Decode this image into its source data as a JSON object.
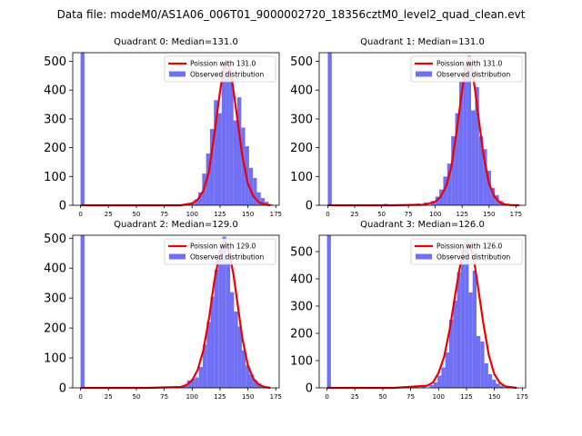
{
  "suptitle": "Data file: modeM0/AS1A06_006T01_9000002720_18356cztM0_level2_quad_clean.evt",
  "colors": {
    "hist": "#7070f5",
    "fit": "#ee0000",
    "axis": "#000000"
  },
  "chart_data": [
    {
      "type": "bar",
      "title": "Quadrant 0: Median=131.0",
      "median": 131.0,
      "xlim": [
        -7,
        178
      ],
      "ylim": [
        0,
        530
      ],
      "xticks": [
        "0",
        "25",
        "50",
        "75",
        "100",
        "125",
        "150",
        "175"
      ],
      "yticks": [
        "0",
        "100",
        "200",
        "300",
        "400",
        "500"
      ],
      "legend": {
        "loc": "top-right",
        "fit": "Poission with 131.0",
        "hist": "Observed distribution"
      },
      "bins": [
        {
          "x": 0,
          "w": 3.5,
          "y": 530
        },
        {
          "x": 95,
          "w": 3.5,
          "y": 3
        },
        {
          "x": 98.5,
          "w": 3.5,
          "y": 8
        },
        {
          "x": 102,
          "w": 3.5,
          "y": 20
        },
        {
          "x": 105.5,
          "w": 3.5,
          "y": 45
        },
        {
          "x": 109,
          "w": 3.5,
          "y": 110
        },
        {
          "x": 112.5,
          "w": 3.5,
          "y": 180
        },
        {
          "x": 116,
          "w": 3.5,
          "y": 265
        },
        {
          "x": 119.5,
          "w": 3.5,
          "y": 365
        },
        {
          "x": 123,
          "w": 3.5,
          "y": 320
        },
        {
          "x": 126.5,
          "w": 3.5,
          "y": 470
        },
        {
          "x": 130,
          "w": 3.5,
          "y": 480
        },
        {
          "x": 133.5,
          "w": 3.5,
          "y": 440
        },
        {
          "x": 137,
          "w": 3.5,
          "y": 295
        },
        {
          "x": 140.5,
          "w": 3.5,
          "y": 375
        },
        {
          "x": 144,
          "w": 3.5,
          "y": 270
        },
        {
          "x": 147.5,
          "w": 3.5,
          "y": 205
        },
        {
          "x": 151,
          "w": 3.5,
          "y": 130
        },
        {
          "x": 154.5,
          "w": 3.5,
          "y": 95
        },
        {
          "x": 158,
          "w": 3.5,
          "y": 45
        },
        {
          "x": 161.5,
          "w": 3.5,
          "y": 25
        },
        {
          "x": 165,
          "w": 3.5,
          "y": 12
        },
        {
          "x": 168.5,
          "w": 3.5,
          "y": 4
        }
      ],
      "fit": {
        "x": [
          0,
          60,
          90,
          100,
          105,
          110,
          115,
          120,
          125,
          128,
          131,
          134,
          137,
          140,
          145,
          150,
          155,
          160,
          165,
          170
        ],
        "y": [
          0,
          0,
          0,
          7,
          20,
          50,
          115,
          250,
          395,
          470,
          500,
          470,
          400,
          315,
          170,
          75,
          30,
          10,
          3,
          0
        ]
      }
    },
    {
      "type": "bar",
      "title": "Quadrant 1: Median=131.0",
      "median": 131.0,
      "xlim": [
        -8,
        184
      ],
      "ylim": [
        0,
        530
      ],
      "xticks": [
        "0",
        "25",
        "50",
        "75",
        "100",
        "125",
        "150",
        "175"
      ],
      "yticks": [
        "0",
        "100",
        "200",
        "300",
        "400",
        "500"
      ],
      "legend": {
        "loc": "top-right",
        "fit": "Poission with 131.0",
        "hist": "Observed distribution"
      },
      "bins": [
        {
          "x": 0,
          "w": 3.7,
          "y": 530
        },
        {
          "x": 52,
          "w": 3.7,
          "y": 5
        },
        {
          "x": 74,
          "w": 3.7,
          "y": 3
        },
        {
          "x": 82,
          "w": 3.7,
          "y": 6
        },
        {
          "x": 89,
          "w": 3.7,
          "y": 10
        },
        {
          "x": 96,
          "w": 3.7,
          "y": 15
        },
        {
          "x": 100,
          "w": 3.7,
          "y": 30
        },
        {
          "x": 103.7,
          "w": 3.7,
          "y": 55
        },
        {
          "x": 107.4,
          "w": 3.7,
          "y": 100
        },
        {
          "x": 111.1,
          "w": 3.7,
          "y": 145
        },
        {
          "x": 114.8,
          "w": 3.7,
          "y": 240
        },
        {
          "x": 118.5,
          "w": 3.7,
          "y": 320
        },
        {
          "x": 122.2,
          "w": 3.7,
          "y": 430
        },
        {
          "x": 125.9,
          "w": 3.7,
          "y": 500
        },
        {
          "x": 129.6,
          "w": 3.7,
          "y": 520
        },
        {
          "x": 133.3,
          "w": 3.7,
          "y": 330
        },
        {
          "x": 137,
          "w": 3.7,
          "y": 410
        },
        {
          "x": 140.7,
          "w": 3.7,
          "y": 240
        },
        {
          "x": 144.4,
          "w": 3.7,
          "y": 195
        },
        {
          "x": 148.1,
          "w": 3.7,
          "y": 120
        },
        {
          "x": 151.8,
          "w": 3.7,
          "y": 60
        },
        {
          "x": 155.5,
          "w": 3.7,
          "y": 35
        },
        {
          "x": 159.2,
          "w": 3.7,
          "y": 15
        },
        {
          "x": 162.9,
          "w": 3.7,
          "y": 5
        }
      ],
      "fit": {
        "x": [
          0,
          60,
          90,
          100,
          105,
          110,
          115,
          120,
          125,
          128,
          131,
          134,
          137,
          140,
          145,
          150,
          155,
          160,
          165,
          170,
          178
        ],
        "y": [
          0,
          0,
          2,
          12,
          30,
          65,
          135,
          260,
          400,
          475,
          505,
          475,
          400,
          310,
          170,
          75,
          30,
          10,
          3,
          1,
          0
        ]
      }
    },
    {
      "type": "bar",
      "title": "Quadrant 2: Median=129.0",
      "median": 129.0,
      "xlim": [
        -7,
        178
      ],
      "ylim": [
        0,
        510
      ],
      "xticks": [
        "0",
        "25",
        "50",
        "75",
        "100",
        "125",
        "150",
        "175"
      ],
      "yticks": [
        "0",
        "100",
        "200",
        "300",
        "400",
        "500"
      ],
      "legend": {
        "loc": "top-right",
        "fit": "Poission with 129.0",
        "hist": "Observed distribution"
      },
      "bins": [
        {
          "x": 0,
          "w": 3.5,
          "y": 510
        },
        {
          "x": 84,
          "w": 3.5,
          "y": 5
        },
        {
          "x": 92,
          "w": 3.5,
          "y": 8
        },
        {
          "x": 95.5,
          "w": 3.5,
          "y": 25
        },
        {
          "x": 99,
          "w": 3.5,
          "y": 30
        },
        {
          "x": 102.5,
          "w": 3.5,
          "y": 35
        },
        {
          "x": 106,
          "w": 3.5,
          "y": 70
        },
        {
          "x": 109.5,
          "w": 3.5,
          "y": 145
        },
        {
          "x": 113,
          "w": 3.5,
          "y": 220
        },
        {
          "x": 116.5,
          "w": 3.5,
          "y": 305
        },
        {
          "x": 120,
          "w": 3.5,
          "y": 395
        },
        {
          "x": 123.5,
          "w": 3.5,
          "y": 460
        },
        {
          "x": 127,
          "w": 3.5,
          "y": 505
        },
        {
          "x": 130.5,
          "w": 3.5,
          "y": 420
        },
        {
          "x": 134,
          "w": 3.5,
          "y": 320
        },
        {
          "x": 137.5,
          "w": 3.5,
          "y": 255
        },
        {
          "x": 141,
          "w": 3.5,
          "y": 205
        },
        {
          "x": 144.5,
          "w": 3.5,
          "y": 125
        },
        {
          "x": 148,
          "w": 3.5,
          "y": 75
        },
        {
          "x": 151.5,
          "w": 3.5,
          "y": 45
        },
        {
          "x": 155,
          "w": 3.5,
          "y": 25
        },
        {
          "x": 158.5,
          "w": 3.5,
          "y": 15
        },
        {
          "x": 162,
          "w": 3.5,
          "y": 6
        }
      ],
      "fit": {
        "x": [
          0,
          60,
          90,
          95,
          100,
          105,
          110,
          115,
          120,
          125,
          129,
          133,
          137,
          140,
          145,
          150,
          155,
          160,
          165,
          170
        ],
        "y": [
          0,
          0,
          3,
          10,
          25,
          60,
          125,
          230,
          360,
          455,
          490,
          455,
          380,
          300,
          165,
          75,
          30,
          10,
          3,
          0
        ]
      }
    },
    {
      "type": "bar",
      "title": "Quadrant 3: Median=126.0",
      "median": 126.0,
      "xlim": [
        -7,
        178
      ],
      "ylim": [
        0,
        560
      ],
      "xticks": [
        "0",
        "25",
        "50",
        "75",
        "100",
        "125",
        "150",
        "175"
      ],
      "yticks": [
        "0",
        "100",
        "200",
        "300",
        "400",
        "500"
      ],
      "legend": {
        "loc": "top-right",
        "fit": "Poission with 126.0",
        "hist": "Observed distribution"
      },
      "bins": [
        {
          "x": 0,
          "w": 3.5,
          "y": 560
        },
        {
          "x": 60,
          "w": 3.5,
          "y": 3
        },
        {
          "x": 76,
          "w": 3.5,
          "y": 4
        },
        {
          "x": 85,
          "w": 3.5,
          "y": 6
        },
        {
          "x": 92,
          "w": 3.5,
          "y": 10
        },
        {
          "x": 95.5,
          "w": 3.5,
          "y": 20
        },
        {
          "x": 99,
          "w": 3.5,
          "y": 45
        },
        {
          "x": 102.5,
          "w": 3.5,
          "y": 75
        },
        {
          "x": 106,
          "w": 3.5,
          "y": 130
        },
        {
          "x": 109.5,
          "w": 3.5,
          "y": 250
        },
        {
          "x": 113,
          "w": 3.5,
          "y": 320
        },
        {
          "x": 116.5,
          "w": 3.5,
          "y": 425
        },
        {
          "x": 120,
          "w": 3.5,
          "y": 510
        },
        {
          "x": 123.5,
          "w": 3.5,
          "y": 545
        },
        {
          "x": 127,
          "w": 3.5,
          "y": 350
        },
        {
          "x": 130.5,
          "w": 3.5,
          "y": 430
        },
        {
          "x": 134,
          "w": 3.5,
          "y": 190
        },
        {
          "x": 137.5,
          "w": 3.5,
          "y": 170
        },
        {
          "x": 141,
          "w": 3.5,
          "y": 90
        },
        {
          "x": 144.5,
          "w": 3.5,
          "y": 50
        },
        {
          "x": 148,
          "w": 3.5,
          "y": 30
        },
        {
          "x": 151.5,
          "w": 3.5,
          "y": 15
        },
        {
          "x": 155,
          "w": 3.5,
          "y": 8
        }
      ],
      "fit": {
        "x": [
          0,
          60,
          90,
          95,
          100,
          105,
          110,
          115,
          120,
          123,
          126,
          129,
          132,
          135,
          140,
          145,
          150,
          155,
          160,
          170
        ],
        "y": [
          0,
          0,
          8,
          20,
          55,
          115,
          215,
          345,
          465,
          515,
          530,
          510,
          460,
          380,
          240,
          120,
          50,
          18,
          5,
          0
        ]
      }
    }
  ]
}
